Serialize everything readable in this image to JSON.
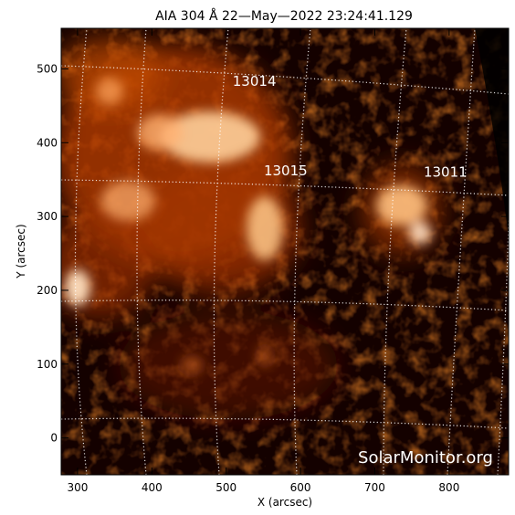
{
  "chart_data": {
    "type": "heatmap",
    "title": "AIA 304 Å 22—May—2022 23:24:41.129",
    "xlabel": "X (arcsec)",
    "ylabel": "Y (arcsec)",
    "xlim": [
      278,
      880
    ],
    "ylim": [
      -50,
      555
    ],
    "xticks": [
      300,
      400,
      500,
      600,
      700,
      800
    ],
    "yticks": [
      0,
      100,
      200,
      300,
      400,
      500
    ],
    "xtick_labels": [
      "300",
      "400",
      "500",
      "600",
      "700",
      "800"
    ],
    "ytick_labels": [
      "0",
      "100",
      "200",
      "300",
      "400",
      "500"
    ],
    "active_regions": [
      {
        "label": "13014",
        "x": 538,
        "y": 477
      },
      {
        "label": "13015",
        "x": 580,
        "y": 356
      },
      {
        "label": "13011",
        "x": 795,
        "y": 354
      }
    ],
    "grid": true,
    "colormap": [
      "#000000",
      "#3a0500",
      "#8a1d00",
      "#d9520c",
      "#ffb26a",
      "#ffffff"
    ]
  },
  "watermark": "SolarMonitor.org"
}
